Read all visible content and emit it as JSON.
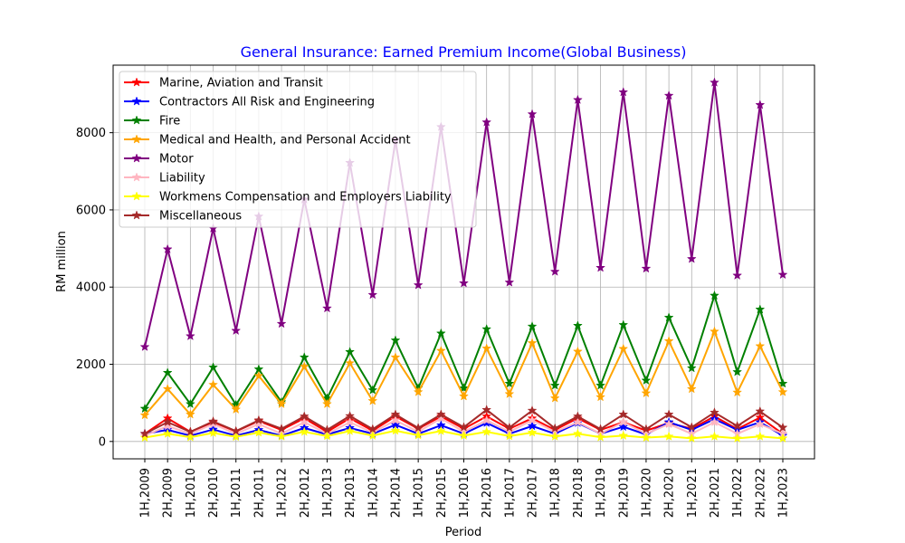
{
  "chart_data": {
    "type": "line",
    "title": "General Insurance: Earned Premium Income(Global Business)",
    "xlabel": "Period",
    "ylabel": "RM million",
    "ylim": [
      -450,
      9750
    ],
    "yticks": [
      0,
      2000,
      4000,
      6000,
      8000
    ],
    "grid": true,
    "legend_position": "upper-left",
    "marker": "star",
    "colors": {
      "title": "#0000ff"
    },
    "categories": [
      "1H,2009",
      "2H,2009",
      "1H,2010",
      "2H,2010",
      "1H,2011",
      "2H,2011",
      "1H,2012",
      "2H,2012",
      "1H,2013",
      "2H,2013",
      "1H,2014",
      "2H,2014",
      "1H,2015",
      "2H,2015",
      "1H,2016",
      "2H,2016",
      "1H,2017",
      "2H,2017",
      "1H,2018",
      "2H,2018",
      "1H,2019",
      "2H,2019",
      "1H,2020",
      "2H,2020",
      "1H,2021",
      "2H,2021",
      "1H,2022",
      "2H,2022",
      "1H,2023"
    ],
    "series": [
      {
        "name": "Marine, Aviation and Transit",
        "color": "#ff0000",
        "values": [
          200,
          600,
          250,
          500,
          260,
          530,
          300,
          600,
          250,
          600,
          280,
          650,
          330,
          650,
          330,
          650,
          330,
          600,
          300,
          600,
          300,
          500,
          280,
          480,
          330,
          650,
          320,
          620,
          200
        ]
      },
      {
        "name": "Contractors All Risk and Engineering",
        "color": "#0000ff",
        "values": [
          200,
          300,
          150,
          310,
          150,
          300,
          150,
          350,
          180,
          350,
          200,
          430,
          200,
          420,
          200,
          480,
          200,
          400,
          200,
          480,
          200,
          380,
          180,
          500,
          300,
          580,
          300,
          500,
          150
        ]
      },
      {
        "name": "Fire",
        "color": "#008000",
        "values": [
          850,
          1780,
          970,
          1920,
          950,
          1870,
          1020,
          2180,
          1120,
          2320,
          1330,
          2620,
          1380,
          2800,
          1380,
          2910,
          1500,
          2980,
          1450,
          3000,
          1450,
          3020,
          1580,
          3210,
          1900,
          3780,
          1800,
          3420,
          1500
        ]
      },
      {
        "name": "Medical and Health, and Personal Accident",
        "color": "#ffa500",
        "values": [
          680,
          1360,
          700,
          1470,
          830,
          1700,
          970,
          1940,
          970,
          2030,
          1050,
          2180,
          1280,
          2350,
          1170,
          2410,
          1230,
          2550,
          1120,
          2330,
          1150,
          2400,
          1250,
          2600,
          1360,
          2850,
          1270,
          2470,
          1280
        ]
      },
      {
        "name": "Motor",
        "color": "#800080",
        "values": [
          2450,
          4980,
          2730,
          5520,
          2870,
          5830,
          3050,
          6270,
          3450,
          7220,
          3800,
          7810,
          4050,
          8150,
          4100,
          8270,
          4120,
          8480,
          4400,
          8850,
          4500,
          9050,
          4480,
          8960,
          4730,
          9300,
          4300,
          8720,
          4320
        ]
      },
      {
        "name": "Liability",
        "color": "#ffb6c1",
        "values": [
          150,
          400,
          200,
          450,
          200,
          450,
          200,
          500,
          200,
          500,
          230,
          550,
          250,
          600,
          250,
          550,
          250,
          550,
          250,
          500,
          200,
          500,
          200,
          450,
          200,
          500,
          200,
          450,
          200
        ]
      },
      {
        "name": "Workmens Compensation and Employers Liability",
        "color": "#ffff00",
        "values": [
          100,
          200,
          110,
          220,
          120,
          230,
          130,
          250,
          140,
          270,
          150,
          280,
          160,
          270,
          150,
          250,
          140,
          230,
          130,
          200,
          110,
          150,
          100,
          130,
          80,
          130,
          80,
          130,
          80
        ]
      },
      {
        "name": "Miscellaneous",
        "color": "#a52a2a",
        "values": [
          200,
          500,
          250,
          520,
          270,
          550,
          330,
          650,
          300,
          660,
          320,
          700,
          350,
          700,
          370,
          820,
          360,
          800,
          340,
          650,
          320,
          700,
          320,
          700,
          370,
          750,
          400,
          780,
          360
        ]
      }
    ]
  }
}
